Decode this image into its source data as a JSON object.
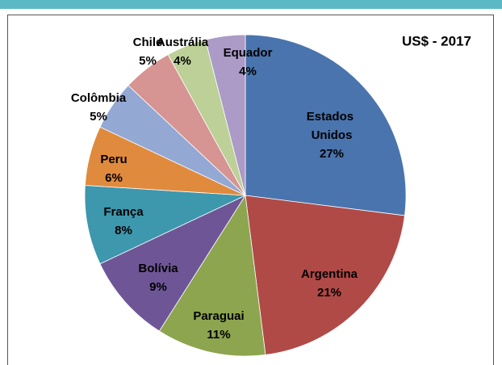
{
  "chart_data": {
    "type": "pie",
    "title": "US$ - 2017",
    "categories": [
      "Estados Unidos",
      "Argentina",
      "Paraguai",
      "Bolívia",
      "França",
      "Peru",
      "Colômbia",
      "Chile",
      "Austrália",
      "Equador"
    ],
    "values": [
      27,
      21,
      11,
      9,
      8,
      6,
      5,
      5,
      4,
      4
    ],
    "value_labels": [
      "27%",
      "21%",
      "11%",
      "9%",
      "8%",
      "6%",
      "5%",
      "5%",
      "4%",
      "4%"
    ],
    "colors": [
      "#4a74ad",
      "#b04a47",
      "#8da54f",
      "#6e5696",
      "#3d97ad",
      "#e08a3e",
      "#94a8d4",
      "#d69492",
      "#bcd098",
      "#ab9bc6"
    ]
  }
}
